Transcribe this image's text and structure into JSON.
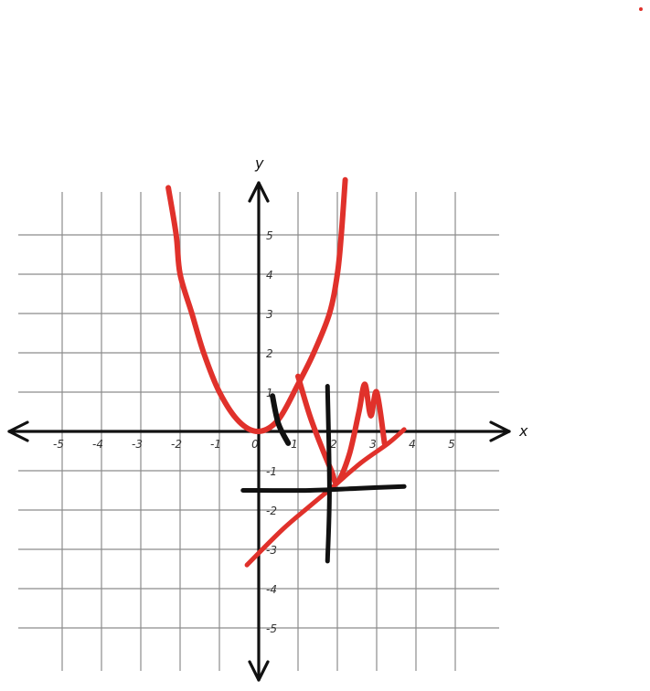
{
  "chart_data": {
    "type": "line",
    "title": "",
    "xlabel": "x",
    "ylabel": "y",
    "xlim": [
      -6,
      6.5
    ],
    "ylim": [
      -6,
      6.5
    ],
    "grid": true,
    "x_tick_labels": [
      "-5",
      "-4",
      "-3",
      "-2",
      "-1",
      "0",
      "1",
      "2",
      "3",
      "4",
      "5"
    ],
    "y_tick_labels": [
      "5",
      "4",
      "3",
      "2",
      "1",
      "-1",
      "-2",
      "-3",
      "-4",
      "-5"
    ],
    "series": [
      {
        "color": "#e0312b",
        "style": "hand-drawn",
        "points": [
          [
            -2.3,
            6.2
          ],
          [
            -2.1,
            5
          ],
          [
            -2,
            4
          ],
          [
            -1.7,
            3
          ],
          [
            -1.4,
            2
          ],
          [
            -1,
            1
          ],
          [
            -0.5,
            0.25
          ],
          [
            0,
            0
          ],
          [
            0.5,
            0.3
          ],
          [
            1,
            1.2
          ],
          [
            1.4,
            2
          ],
          [
            1.8,
            3
          ],
          [
            2,
            4
          ],
          [
            2.1,
            5
          ],
          [
            2.2,
            6.4
          ]
        ]
      },
      {
        "color": "#e0312b",
        "style": "hand-drawn",
        "points": [
          [
            1,
            1.4
          ],
          [
            1.3,
            0.4
          ],
          [
            1.6,
            -0.4
          ],
          [
            1.85,
            -1
          ],
          [
            2,
            -1.3
          ],
          [
            2.3,
            -0.6
          ],
          [
            2.55,
            0.5
          ],
          [
            2.7,
            1.2
          ],
          [
            2.85,
            0.4
          ],
          [
            3.0,
            1.0
          ],
          [
            3.2,
            -0.3
          ]
        ]
      },
      {
        "color": "#e0312b",
        "style": "hand-drawn",
        "points": [
          [
            -0.3,
            -3.4
          ],
          [
            0.6,
            -2.5
          ],
          [
            1.3,
            -1.9
          ],
          [
            1.9,
            -1.4
          ],
          [
            2.6,
            -0.8
          ],
          [
            3.3,
            -0.3
          ],
          [
            3.7,
            0.05
          ]
        ]
      },
      {
        "color": "#111111",
        "style": "hand-drawn",
        "points": [
          [
            0.35,
            0.9
          ],
          [
            0.5,
            0.2
          ],
          [
            0.75,
            -0.3
          ]
        ]
      },
      {
        "color": "#111111",
        "style": "hand-drawn",
        "points": [
          [
            1.75,
            1.15
          ],
          [
            1.8,
            -1.5
          ],
          [
            1.75,
            -3.3
          ]
        ]
      },
      {
        "color": "#111111",
        "style": "hand-drawn",
        "points": [
          [
            -0.4,
            -1.5
          ],
          [
            1.3,
            -1.5
          ],
          [
            2.5,
            -1.45
          ],
          [
            3.7,
            -1.4
          ]
        ]
      }
    ]
  }
}
